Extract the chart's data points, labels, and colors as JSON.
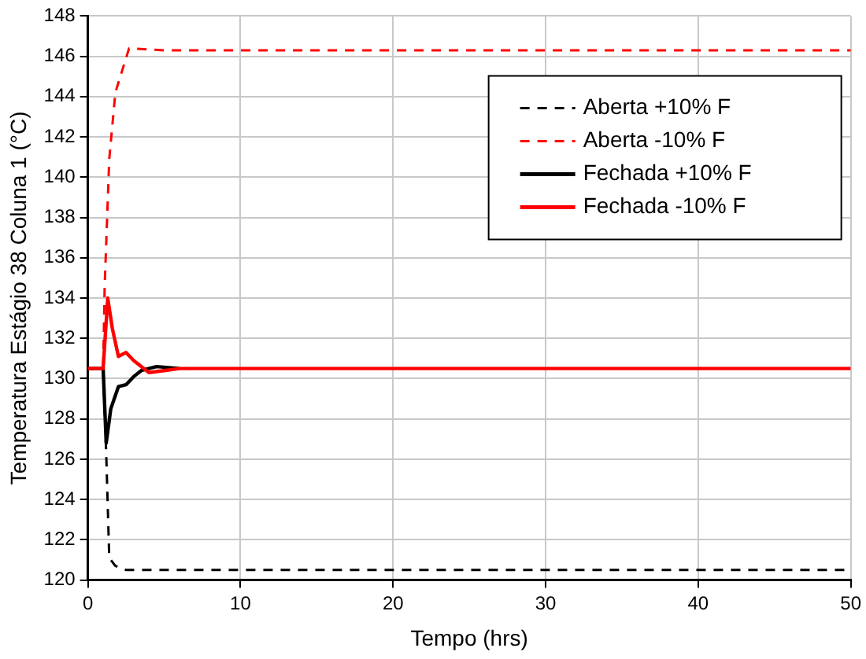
{
  "chart_data": {
    "type": "line",
    "xlabel": "Tempo (hrs)",
    "ylabel": "Temperatura Estágio 38 Coluna 1 (°C)",
    "xlim": [
      0,
      50
    ],
    "xticks": [
      0,
      10,
      20,
      30,
      40,
      50
    ],
    "ylim": [
      120,
      148
    ],
    "yticks": [
      120,
      122,
      124,
      126,
      128,
      130,
      132,
      134,
      136,
      138,
      140,
      142,
      144,
      146,
      148
    ],
    "grid": true,
    "legend": "top right",
    "marker": "none",
    "series": [
      {
        "name": "Aberta +10% F",
        "color": "#000000",
        "line_style": "dashed",
        "x": [
          0,
          1,
          1.2,
          1.4,
          1.8,
          2.5,
          5,
          10,
          20,
          30,
          40,
          50
        ],
        "values": [
          130.5,
          130.5,
          126.3,
          121.1,
          120.7,
          120.5,
          120.5,
          120.5,
          120.5,
          120.5,
          120.5,
          120.5
        ]
      },
      {
        "name": "Aberta -10% F",
        "color": "#ff0000",
        "line_style": "dashed",
        "x": [
          0,
          1,
          1.1,
          1.4,
          1.8,
          2.7,
          5,
          10,
          20,
          30,
          40,
          50
        ],
        "values": [
          130.5,
          130.5,
          134.6,
          140.9,
          144.2,
          146.4,
          146.3,
          146.3,
          146.3,
          146.3,
          146.3,
          146.3
        ]
      },
      {
        "name": "Fechada +10% F",
        "color": "#000000",
        "line_style": "solid",
        "x": [
          0,
          1,
          1.2,
          1.5,
          2,
          2.5,
          3,
          3.5,
          4.5,
          6
        ],
        "values": [
          130.5,
          130.5,
          126.8,
          128.5,
          129.6,
          129.7,
          130.1,
          130.4,
          130.6,
          130.5
        ]
      },
      {
        "name": "Fechada -10% F",
        "color": "#ff0000",
        "line_style": "solid",
        "x": [
          0,
          1,
          1.3,
          1.6,
          2,
          2.5,
          3,
          4,
          5,
          6,
          10,
          20,
          30,
          40,
          50
        ],
        "values": [
          130.5,
          130.5,
          134.0,
          132.5,
          131.1,
          131.3,
          130.9,
          130.3,
          130.4,
          130.5,
          130.5,
          130.5,
          130.5,
          130.5,
          130.5
        ]
      }
    ]
  }
}
